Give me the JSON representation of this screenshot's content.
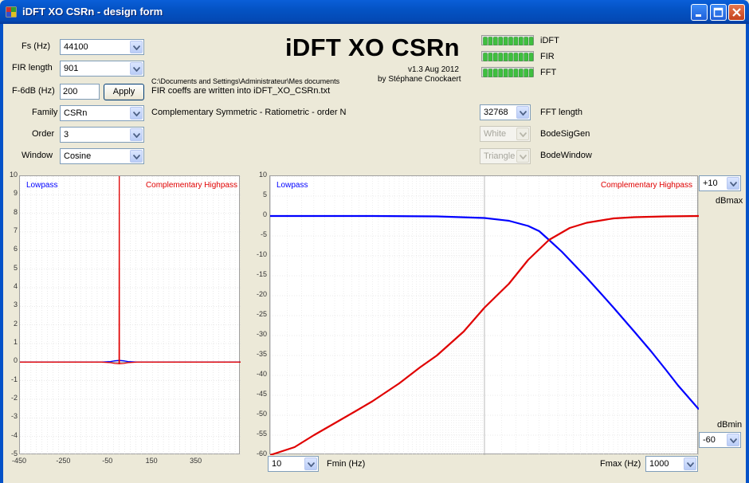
{
  "window": {
    "title": "iDFT XO CSRn - design form"
  },
  "colors": {
    "lowpass": "#0000ff",
    "highpass": "#e00000",
    "accent": "#0453c4"
  },
  "icons": {
    "app": "app-icon",
    "minimize": "minimize-icon",
    "maximize": "maximize-icon",
    "close": "close-icon",
    "dropdown": "chevron-down-icon"
  },
  "form": {
    "fs": {
      "label": "Fs (Hz)",
      "value": "44100"
    },
    "fir_length": {
      "label": "FIR length",
      "value": "901"
    },
    "f6db": {
      "label": "F-6dB (Hz)",
      "value": "200",
      "apply_label": "Apply"
    },
    "family": {
      "label": "Family",
      "value": "CSRn",
      "description": "Complementary Symmetric - Ratiometric - order N"
    },
    "order": {
      "label": "Order",
      "value": "3"
    },
    "window": {
      "label": "Window",
      "value": "Cosine"
    }
  },
  "info": {
    "path": "C:\\Documents and Settings\\Administrateur\\Mes documents",
    "coeffs_note": "FIR coeffs are written into iDFT_XO_CSRn.txt"
  },
  "header": {
    "title": "iDFT XO CSRn",
    "version": "v1.3 Aug 2012",
    "author": "by Stéphane Cnockaert"
  },
  "status": {
    "idft": {
      "label": "iDFT",
      "progress": 1.0
    },
    "fir": {
      "label": "FIR",
      "progress": 1.0
    },
    "fft": {
      "label": "FFT",
      "progress": 1.0
    }
  },
  "fft": {
    "length": {
      "value": "32768",
      "label": "FFT length"
    },
    "bode_sig_gen": {
      "value": "White",
      "label": "BodeSigGen"
    },
    "bode_window": {
      "value": "Triangle",
      "label": "BodeWindow"
    }
  },
  "controls": {
    "dbmax": {
      "value": "+10",
      "label": "dBmax"
    },
    "dbmin": {
      "value": "-60",
      "label": "dBmin"
    },
    "fmin": {
      "value": "10",
      "label": "Fmin (Hz)"
    },
    "fmax": {
      "value": "1000",
      "label": "Fmax (Hz)"
    }
  },
  "chart_data": [
    {
      "type": "line",
      "title": "",
      "legend": [
        "Lowpass",
        "Complementary Highpass"
      ],
      "x_ticks": [
        "-450",
        "-250",
        "-50",
        "150",
        "350"
      ],
      "y_ticks": [
        "10",
        "9",
        "8",
        "7",
        "6",
        "5",
        "4",
        "3",
        "2",
        "1",
        "0",
        "-1",
        "-2",
        "-3",
        "-4",
        "-5"
      ],
      "xlim": [
        -450,
        550
      ],
      "ylim": [
        -5,
        10
      ],
      "series": [
        {
          "name": "Lowpass",
          "x": [
            -450,
            -80,
            -40,
            -20,
            0,
            20,
            40,
            80,
            550
          ],
          "y": [
            0,
            0,
            0.03,
            0.07,
            0.09,
            0.07,
            0.03,
            0,
            0
          ]
        },
        {
          "name": "Complementary Highpass",
          "x": [
            -450,
            -80,
            -40,
            -20,
            -1,
            0,
            1,
            20,
            40,
            80,
            550
          ],
          "y": [
            0,
            0,
            -0.03,
            -0.07,
            -0.09,
            10,
            -0.09,
            -0.07,
            -0.03,
            0,
            0
          ]
        }
      ]
    },
    {
      "type": "line",
      "title": "",
      "legend": [
        "Lowpass",
        "Complementary Highpass"
      ],
      "x_scale": "log",
      "xlim": [
        10,
        1000
      ],
      "ylim": [
        -60,
        10
      ],
      "y_ticks": [
        "10",
        "5",
        "0",
        "-5",
        "-10",
        "-15",
        "-20",
        "-25",
        "-30",
        "-35",
        "-40",
        "-45",
        "-50",
        "-55",
        "-60"
      ],
      "series": [
        {
          "name": "Lowpass",
          "x": [
            10,
            30,
            60,
            100,
            130,
            160,
            180,
            200,
            230,
            260,
            300,
            350,
            400,
            500,
            600,
            700,
            800,
            1000
          ],
          "y": [
            0,
            0,
            -0.1,
            -0.5,
            -1.2,
            -2.5,
            -3.8,
            -6,
            -9,
            -12,
            -15.5,
            -19.5,
            -23,
            -29,
            -34,
            -38.5,
            -42.5,
            -48.5
          ]
        },
        {
          "name": "Complementary Highpass",
          "x": [
            10,
            13,
            16,
            20,
            25,
            30,
            40,
            50,
            60,
            80,
            100,
            130,
            160,
            200,
            250,
            300,
            400,
            500,
            700,
            1000
          ],
          "y": [
            -60,
            -58,
            -55,
            -52,
            -49,
            -46.5,
            -42,
            -38,
            -35,
            -29,
            -23,
            -17,
            -11,
            -6,
            -3,
            -1.7,
            -0.6,
            -0.3,
            -0.1,
            0
          ]
        }
      ]
    }
  ]
}
